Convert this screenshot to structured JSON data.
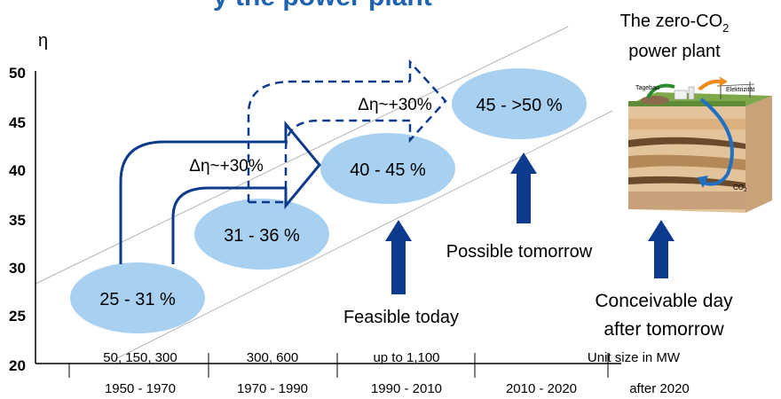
{
  "title_fragment": "y the power plant",
  "y_axis": {
    "symbol": "η",
    "ticks": [
      "50",
      "45",
      "40",
      "35",
      "30",
      "25",
      "20"
    ]
  },
  "stages": [
    {
      "label": "25 - 31 %"
    },
    {
      "label": "31 - 36 %"
    },
    {
      "label": "40 - 45 %"
    },
    {
      "label": "45 - >50 %"
    }
  ],
  "delta_labels": [
    "Δη~+30%",
    "Δη~+30%"
  ],
  "arrow_captions": {
    "feasible": "Feasible today",
    "possible": "Possible tomorrow",
    "conceivable_line1": "Conceivable day",
    "conceivable_line2": "after tomorrow"
  },
  "zero_co2": {
    "line1_prefix": "The zero-CO",
    "line1_sub": "2",
    "line2": "power plant",
    "illustration": {
      "label_left": "Tagebau",
      "label_right": "Elektrizität",
      "label_co2": "CO",
      "label_co2_sub": "2"
    }
  },
  "unit_sizes": [
    "50, 150, 300",
    "300, 600",
    "up to 1,100",
    "Unit size in MW"
  ],
  "periods": [
    "1950 - 1970",
    "1970 - 1990",
    "1990 - 2010",
    "2010 - 2020",
    "after 2020"
  ],
  "colors": {
    "ellipse_fill": "#a8d0f0",
    "arrow_blue": "#0d3a8c",
    "title_blue": "#1d63b0",
    "guide_line": "#b4b4b4"
  }
}
